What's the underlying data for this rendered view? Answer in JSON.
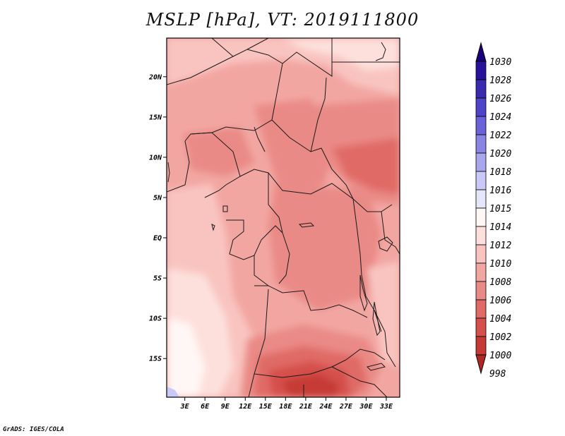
{
  "title": "MSLP [hPa], VT: 2019111800",
  "footer": "GrADS: IGES/COLA",
  "map": {
    "lat_labels": [
      {
        "label": "20N",
        "lat": 20
      },
      {
        "label": "15N",
        "lat": 15
      },
      {
        "label": "10N",
        "lat": 10
      },
      {
        "label": "5N",
        "lat": 5
      },
      {
        "label": "EQ",
        "lat": 0
      },
      {
        "label": "5S",
        "lat": -5
      },
      {
        "label": "10S",
        "lat": -10
      },
      {
        "label": "15S",
        "lat": -15
      }
    ],
    "lon_labels": [
      {
        "label": "3E",
        "lon": 3
      },
      {
        "label": "6E",
        "lon": 6
      },
      {
        "label": "9E",
        "lon": 9
      },
      {
        "label": "12E",
        "lon": 12
      },
      {
        "label": "15E",
        "lon": 15
      },
      {
        "label": "18E",
        "lon": 18
      },
      {
        "label": "21E",
        "lon": 21
      },
      {
        "label": "24E",
        "lon": 24
      },
      {
        "label": "27E",
        "lon": 27
      },
      {
        "label": "30E",
        "lon": 30
      },
      {
        "label": "33E",
        "lon": 33
      }
    ],
    "lon_range": [
      0.3,
      35
    ],
    "lat_range": [
      -19.8,
      24.8
    ]
  },
  "colorbar": {
    "levels": [
      {
        "label": "1030",
        "color": "#1a007a"
      },
      {
        "label": "1028",
        "color": "#28129a"
      },
      {
        "label": "1026",
        "color": "#3a2ab0"
      },
      {
        "label": "1024",
        "color": "#4e44c8"
      },
      {
        "label": "1022",
        "color": "#6a62d8"
      },
      {
        "label": "1020",
        "color": "#8a84e4"
      },
      {
        "label": "1018",
        "color": "#aaa6ee"
      },
      {
        "label": "1016",
        "color": "#cac8f6"
      },
      {
        "label": "1015",
        "color": "#e6e6fb"
      },
      {
        "label": "1014",
        "color": "#fff7f5"
      },
      {
        "label": "1012",
        "color": "#fde0dc"
      },
      {
        "label": "1010",
        "color": "#f9c4c0"
      },
      {
        "label": "1008",
        "color": "#f2a6a2"
      },
      {
        "label": "1006",
        "color": "#ea8a86"
      },
      {
        "label": "1004",
        "color": "#e06a66"
      },
      {
        "label": "1002",
        "color": "#d5504c"
      },
      {
        "label": "1000",
        "color": "#c63a36"
      },
      {
        "label": "998",
        "color": "#b02824"
      }
    ]
  }
}
